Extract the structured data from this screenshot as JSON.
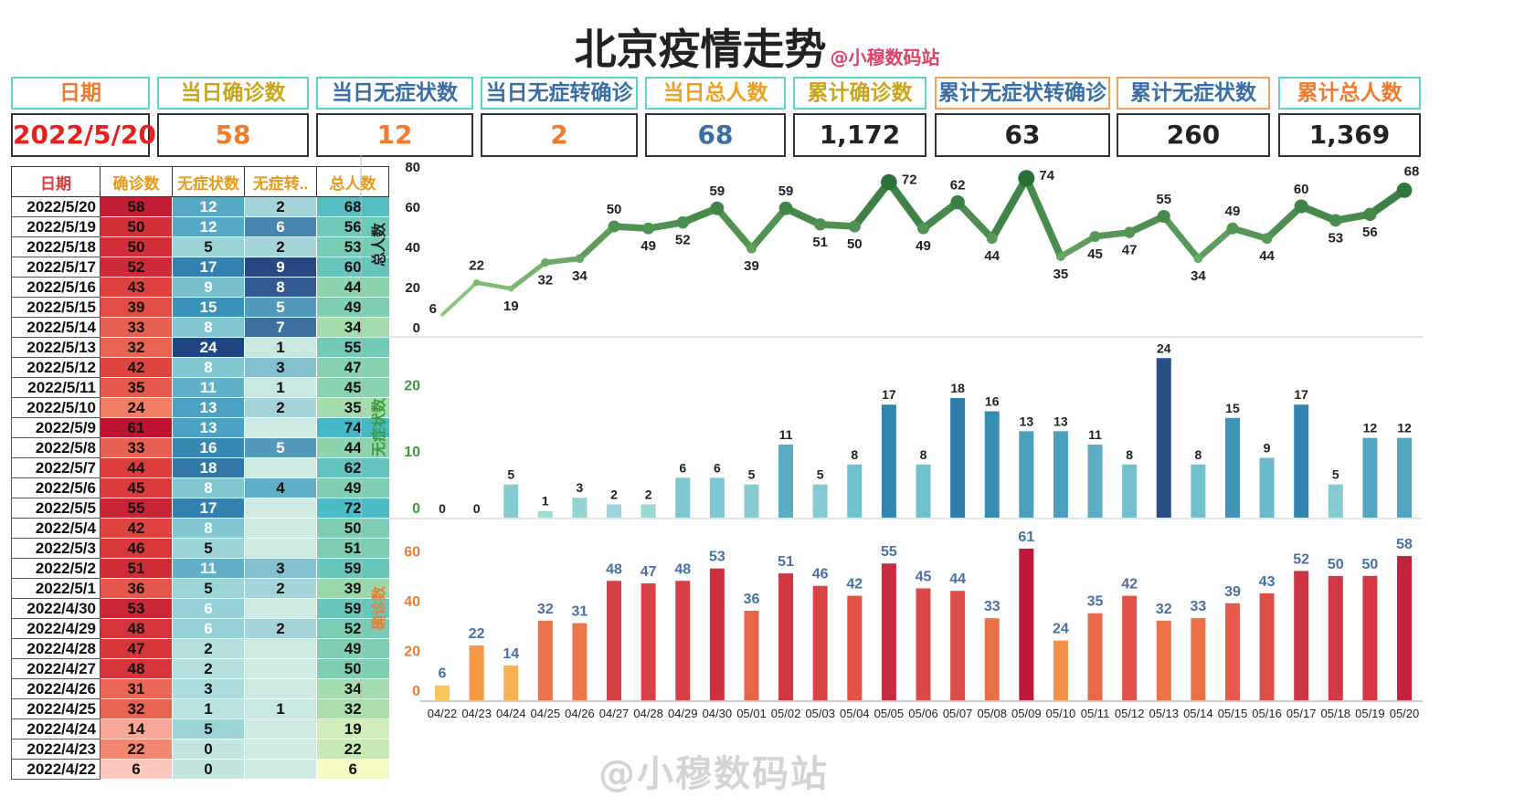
{
  "title": "北京疫情走势",
  "subtitle": "@小穆数码站",
  "watermark": "@小穆数码站",
  "kpis": [
    {
      "label": "日期",
      "value": "2022/5/20",
      "label_color": "#f07b2e",
      "value_color": "#e8201d"
    },
    {
      "label": "当日确诊数",
      "value": "58",
      "label_color": "#c9a51a",
      "value_color": "#f07b2e"
    },
    {
      "label": "当日无症状数",
      "value": "12",
      "label_color": "#3a6ea5",
      "value_color": "#f07b2e"
    },
    {
      "label": "当日无症转确诊",
      "value": "2",
      "label_color": "#3a6ea5",
      "value_color": "#f07b2e"
    },
    {
      "label": "当日总人数",
      "value": "68",
      "label_color": "#f0a020",
      "value_color": "#3a6ea5"
    },
    {
      "label": "累计确诊数",
      "value": "1,172",
      "label_color": "#c9a51a",
      "value_color": "#222222"
    },
    {
      "label": "累计无症状转确诊",
      "value": "63",
      "label_color": "#3a6ea5",
      "value_color": "#222222"
    },
    {
      "label": "累计无症状数",
      "value": "260",
      "label_color": "#3a6ea5",
      "value_color": "#222222"
    },
    {
      "label": "累计总人数",
      "value": "1,369",
      "label_color": "#f07b2e",
      "value_color": "#222222"
    }
  ],
  "table": {
    "headers": [
      "日期",
      "确诊数",
      "无症状数",
      "无症转..",
      "总人数"
    ],
    "header_colors": [
      "#e23a3a",
      "#e69a1a",
      "#e69a1a",
      "#e69a1a",
      "#e69a1a"
    ],
    "rows": [
      [
        "2022/5/20",
        "58",
        "12",
        "2",
        "68"
      ],
      [
        "2022/5/19",
        "50",
        "12",
        "6",
        "56"
      ],
      [
        "2022/5/18",
        "50",
        "5",
        "2",
        "53"
      ],
      [
        "2022/5/17",
        "52",
        "17",
        "9",
        "60"
      ],
      [
        "2022/5/16",
        "43",
        "9",
        "8",
        "44"
      ],
      [
        "2022/5/15",
        "39",
        "15",
        "5",
        "49"
      ],
      [
        "2022/5/14",
        "33",
        "8",
        "7",
        "34"
      ],
      [
        "2022/5/13",
        "32",
        "24",
        "1",
        "55"
      ],
      [
        "2022/5/12",
        "42",
        "8",
        "3",
        "47"
      ],
      [
        "2022/5/11",
        "35",
        "11",
        "1",
        "45"
      ],
      [
        "2022/5/10",
        "24",
        "13",
        "2",
        "35"
      ],
      [
        "2022/5/9",
        "61",
        "13",
        "",
        "74"
      ],
      [
        "2022/5/8",
        "33",
        "16",
        "5",
        "44"
      ],
      [
        "2022/5/7",
        "44",
        "18",
        "",
        "62"
      ],
      [
        "2022/5/6",
        "45",
        "8",
        "4",
        "49"
      ],
      [
        "2022/5/5",
        "55",
        "17",
        "",
        "72"
      ],
      [
        "2022/5/4",
        "42",
        "8",
        "",
        "50"
      ],
      [
        "2022/5/3",
        "46",
        "5",
        "",
        "51"
      ],
      [
        "2022/5/2",
        "51",
        "11",
        "3",
        "59"
      ],
      [
        "2022/5/1",
        "36",
        "5",
        "2",
        "39"
      ],
      [
        "2022/4/30",
        "53",
        "6",
        "",
        "59"
      ],
      [
        "2022/4/29",
        "48",
        "6",
        "2",
        "52"
      ],
      [
        "2022/4/28",
        "47",
        "2",
        "",
        "49"
      ],
      [
        "2022/4/27",
        "48",
        "2",
        "",
        "50"
      ],
      [
        "2022/4/26",
        "31",
        "3",
        "",
        "34"
      ],
      [
        "2022/4/25",
        "32",
        "1",
        "1",
        "32"
      ],
      [
        "2022/4/24",
        "14",
        "5",
        "",
        "19"
      ],
      [
        "2022/4/23",
        "22",
        "0",
        "",
        "22"
      ],
      [
        "2022/4/22",
        "6",
        "0",
        "",
        "6"
      ]
    ]
  },
  "chart_data": [
    {
      "type": "line",
      "ylabel": "总人数",
      "ylim": [
        0,
        80
      ],
      "yticks": [
        0,
        20,
        40,
        60,
        80
      ],
      "x": [
        "04/22",
        "04/23",
        "04/24",
        "04/25",
        "04/26",
        "04/27",
        "04/28",
        "04/29",
        "04/30",
        "05/01",
        "05/02",
        "05/03",
        "05/04",
        "05/05",
        "05/06",
        "05/07",
        "05/08",
        "05/09",
        "05/10",
        "05/11",
        "05/12",
        "05/13",
        "05/14",
        "05/15",
        "05/16",
        "05/17",
        "05/18",
        "05/19",
        "05/20"
      ],
      "values": [
        6,
        22,
        19,
        32,
        34,
        50,
        49,
        52,
        59,
        39,
        59,
        51,
        50,
        72,
        49,
        62,
        44,
        74,
        35,
        45,
        47,
        55,
        34,
        49,
        44,
        60,
        53,
        56,
        68
      ]
    },
    {
      "type": "bar",
      "ylabel": "无症状数",
      "ylim": [
        0,
        25
      ],
      "yticks": [
        0,
        10,
        20
      ],
      "x": [
        "04/22",
        "04/23",
        "04/24",
        "04/25",
        "04/26",
        "04/27",
        "04/28",
        "04/29",
        "04/30",
        "05/01",
        "05/02",
        "05/03",
        "05/04",
        "05/05",
        "05/06",
        "05/07",
        "05/08",
        "05/09",
        "05/10",
        "05/11",
        "05/12",
        "05/13",
        "05/14",
        "05/15",
        "05/16",
        "05/17",
        "05/18",
        "05/19",
        "05/20"
      ],
      "values": [
        0,
        0,
        5,
        1,
        3,
        2,
        2,
        6,
        6,
        5,
        11,
        5,
        8,
        17,
        8,
        18,
        16,
        13,
        13,
        11,
        8,
        24,
        8,
        15,
        9,
        17,
        5,
        12,
        12
      ]
    },
    {
      "type": "bar",
      "ylabel": "确诊数",
      "ylim": [
        0,
        65
      ],
      "yticks": [
        0,
        20,
        40,
        60
      ],
      "x": [
        "04/22",
        "04/23",
        "04/24",
        "04/25",
        "04/26",
        "04/27",
        "04/28",
        "04/29",
        "04/30",
        "05/01",
        "05/02",
        "05/03",
        "05/04",
        "05/05",
        "05/06",
        "05/07",
        "05/08",
        "05/09",
        "05/10",
        "05/11",
        "05/12",
        "05/13",
        "05/14",
        "05/15",
        "05/16",
        "05/17",
        "05/18",
        "05/19",
        "05/20"
      ],
      "values": [
        6,
        22,
        14,
        32,
        31,
        48,
        47,
        48,
        53,
        36,
        51,
        46,
        42,
        55,
        45,
        44,
        33,
        61,
        24,
        35,
        42,
        32,
        33,
        39,
        43,
        52,
        50,
        50,
        58
      ]
    }
  ],
  "colors": {
    "line": "#3f8f3a",
    "axis_label_line": "#222222",
    "axis_label_asym": "#3f9a3a",
    "axis_label_conf": "#f07b2e",
    "conf_value_label": "#4a6fa5"
  }
}
